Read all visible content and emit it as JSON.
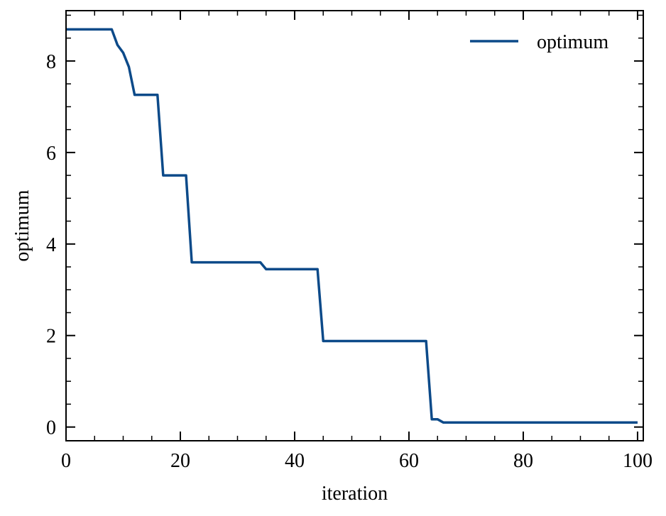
{
  "chart_data": {
    "type": "line",
    "title": "",
    "xlabel": "iteration",
    "ylabel": "optimum",
    "xlim": [
      0,
      101
    ],
    "ylim": [
      -0.3,
      9.1
    ],
    "x_ticks": [
      0,
      20,
      40,
      60,
      80,
      100
    ],
    "y_ticks": [
      0,
      2,
      4,
      6,
      8
    ],
    "x_minor_step": 5,
    "y_minor_step": 0.5,
    "grid": false,
    "legend": {
      "position": "top-right",
      "entries": [
        "optimum"
      ]
    },
    "series": [
      {
        "name": "optimum",
        "color": "#0C4A89",
        "x": [
          0,
          8,
          9,
          10,
          11,
          12,
          16,
          17,
          21,
          22,
          34,
          35,
          44,
          45,
          63,
          64,
          65,
          66,
          100
        ],
        "y": [
          8.69,
          8.69,
          8.35,
          8.18,
          7.87,
          7.26,
          7.26,
          5.5,
          5.5,
          3.6,
          3.6,
          3.45,
          3.45,
          1.88,
          1.88,
          0.17,
          0.17,
          0.1,
          0.1
        ]
      }
    ]
  }
}
